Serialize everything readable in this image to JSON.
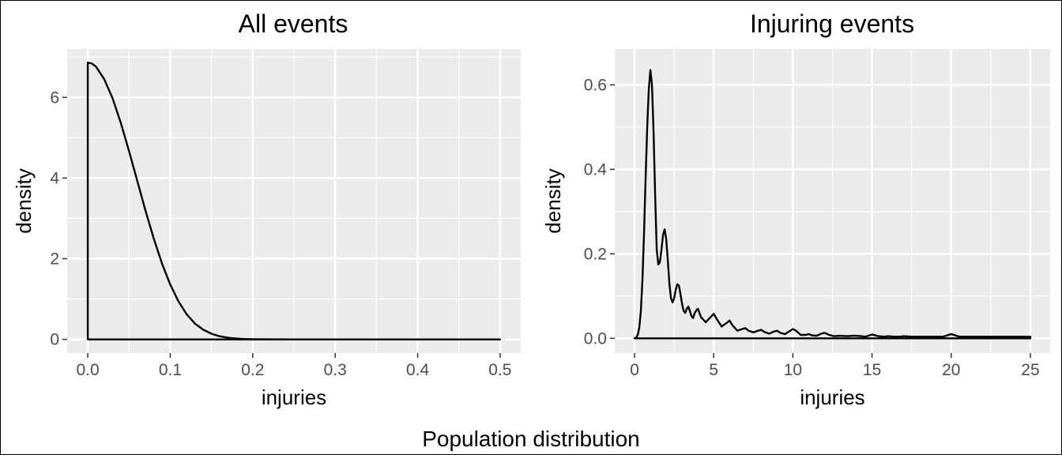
{
  "figure": {
    "caption": "Population distribution"
  },
  "chart_data": [
    {
      "type": "area",
      "title": "All events",
      "xlabel": "injuries",
      "ylabel": "density",
      "xlim": [
        -0.025,
        0.525
      ],
      "ylim": [
        -0.34,
        7.2
      ],
      "xticks": [
        0.0,
        0.1,
        0.2,
        0.3,
        0.4,
        0.5
      ],
      "xtick_labels": [
        "0.0",
        "0.1",
        "0.2",
        "0.3",
        "0.4",
        "0.5"
      ],
      "yticks": [
        0,
        2,
        4,
        6
      ],
      "ytick_labels": [
        "0",
        "2",
        "4",
        "6"
      ],
      "grid": true,
      "series": [
        {
          "x": [
            0.0,
            0.005,
            0.01,
            0.02,
            0.03,
            0.04,
            0.05,
            0.06,
            0.07,
            0.08,
            0.09,
            0.1,
            0.11,
            0.12,
            0.13,
            0.14,
            0.15,
            0.16,
            0.17,
            0.18,
            0.19,
            0.2,
            0.22,
            0.25,
            0.3,
            0.35,
            0.4,
            0.45,
            0.5
          ],
          "y": [
            6.86,
            6.84,
            6.76,
            6.45,
            5.98,
            5.37,
            4.67,
            3.93,
            3.19,
            2.5,
            1.88,
            1.36,
            0.94,
            0.62,
            0.39,
            0.24,
            0.14,
            0.077,
            0.04,
            0.02,
            0.009,
            0.004,
            0.001,
            0.0,
            0.0,
            0.0,
            0.0,
            0.0,
            0.0
          ]
        }
      ]
    },
    {
      "type": "area",
      "title": "Injuring events",
      "xlabel": "injuries",
      "ylabel": "density",
      "xlim": [
        -1.25,
        26.25
      ],
      "ylim": [
        -0.035,
        0.685
      ],
      "xticks": [
        0,
        5,
        10,
        15,
        20,
        25
      ],
      "xtick_labels": [
        "0",
        "5",
        "10",
        "15",
        "20",
        "25"
      ],
      "yticks": [
        0.0,
        0.2,
        0.4,
        0.6
      ],
      "ytick_labels": [
        "0.0",
        "0.2",
        "0.4",
        "0.6"
      ],
      "grid": true,
      "series": [
        {
          "x": [
            0,
            0.1,
            0.2,
            0.3,
            0.4,
            0.5,
            0.6,
            0.7,
            0.8,
            0.9,
            1.0,
            1.1,
            1.2,
            1.3,
            1.4,
            1.5,
            1.6,
            1.7,
            1.8,
            1.9,
            2.0,
            2.1,
            2.2,
            2.3,
            2.4,
            2.5,
            2.6,
            2.7,
            2.8,
            2.9,
            3.0,
            3.1,
            3.2,
            3.3,
            3.4,
            3.5,
            3.6,
            3.7,
            3.8,
            3.9,
            4.0,
            4.2,
            4.5,
            4.8,
            5.0,
            5.2,
            5.5,
            5.8,
            6.0,
            6.2,
            6.5,
            6.8,
            7.0,
            7.2,
            7.5,
            7.8,
            8.0,
            8.2,
            8.5,
            8.8,
            9.0,
            9.2,
            9.5,
            9.8,
            10.0,
            10.2,
            10.5,
            10.8,
            11.0,
            11.2,
            11.5,
            11.8,
            12.0,
            12.3,
            12.6,
            13.0,
            13.4,
            13.8,
            14.0,
            14.3,
            14.6,
            15.0,
            15.4,
            15.8,
            16.0,
            16.4,
            16.8,
            17.0,
            17.5,
            18.0,
            18.5,
            19.0,
            19.5,
            20.0,
            20.5,
            21.0,
            21.5,
            22.0,
            22.5,
            23.0,
            23.5,
            24.0,
            24.5,
            25.0
          ],
          "y": [
            0.0,
            0.002,
            0.008,
            0.025,
            0.065,
            0.14,
            0.25,
            0.38,
            0.5,
            0.59,
            0.635,
            0.6,
            0.49,
            0.34,
            0.21,
            0.175,
            0.18,
            0.21,
            0.245,
            0.258,
            0.235,
            0.185,
            0.13,
            0.095,
            0.085,
            0.095,
            0.115,
            0.128,
            0.125,
            0.105,
            0.082,
            0.065,
            0.06,
            0.07,
            0.075,
            0.064,
            0.052,
            0.048,
            0.06,
            0.066,
            0.07,
            0.05,
            0.038,
            0.05,
            0.058,
            0.045,
            0.028,
            0.036,
            0.042,
            0.03,
            0.018,
            0.022,
            0.024,
            0.018,
            0.014,
            0.018,
            0.02,
            0.015,
            0.011,
            0.016,
            0.018,
            0.013,
            0.01,
            0.017,
            0.022,
            0.018,
            0.008,
            0.008,
            0.01,
            0.007,
            0.006,
            0.011,
            0.013,
            0.008,
            0.005,
            0.006,
            0.005,
            0.006,
            0.006,
            0.005,
            0.004,
            0.009,
            0.005,
            0.004,
            0.005,
            0.004,
            0.004,
            0.005,
            0.004,
            0.004,
            0.004,
            0.004,
            0.004,
            0.01,
            0.004,
            0.004,
            0.004,
            0.004,
            0.004,
            0.004,
            0.004,
            0.004,
            0.004,
            0.004
          ]
        }
      ]
    }
  ]
}
